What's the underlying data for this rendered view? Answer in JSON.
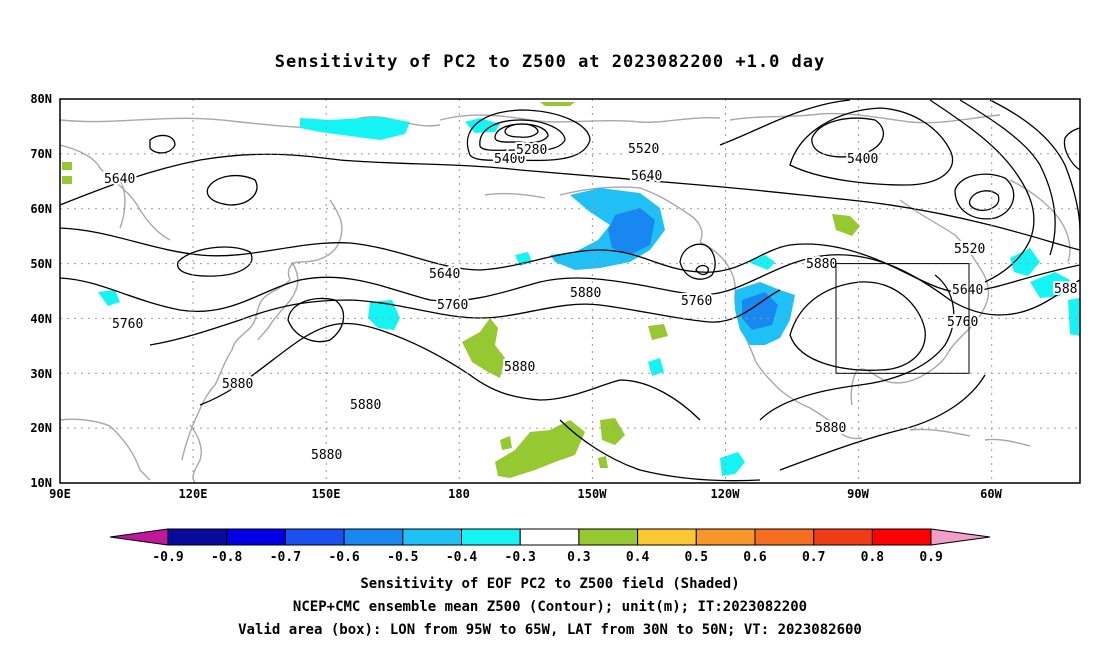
{
  "title": "Sensitivity of PC2 to Z500 at 2023082200 +1.0 day",
  "map": {
    "lat_labels": [
      "80N",
      "70N",
      "60N",
      "50N",
      "40N",
      "30N",
      "20N",
      "10N"
    ],
    "lon_labels": [
      "90E",
      "120E",
      "150E",
      "180",
      "150W",
      "120W",
      "90W",
      "60W"
    ],
    "contour_labels": [
      "5640",
      "5760",
      "5880",
      "5400",
      "5280",
      "5520",
      "5640",
      "5640",
      "5760",
      "5880",
      "5880",
      "5760",
      "5880",
      "5880",
      "5400",
      "5520",
      "5640",
      "5760",
      "5880",
      "5880",
      "5880",
      "588"
    ],
    "valid_box": {
      "lon": [
        "95W",
        "65W"
      ],
      "lat": [
        "30N",
        "50N"
      ]
    }
  },
  "colorbar": {
    "ticks": [
      "-0.9",
      "-0.8",
      "-0.7",
      "-0.6",
      "-0.5",
      "-0.4",
      "-0.3",
      "0.3",
      "0.4",
      "0.5",
      "0.6",
      "0.7",
      "0.8",
      "0.9"
    ],
    "colors": {
      "below": "#c0189a",
      "bins": [
        "#0a0a9a",
        "#0000e6",
        "#1a50f0",
        "#1888f0",
        "#1ec0f6",
        "#14f4f4",
        "#ffffff",
        "#96c832",
        "#fac832",
        "#f89628",
        "#f56e1e",
        "#ef3c14",
        "#ff0000"
      ],
      "above": "#f0a0c8"
    }
  },
  "footer": {
    "line1": "Sensitivity of EOF PC2 to Z500 field (Shaded)",
    "line2": "NCEP+CMC ensemble mean Z500 (Contour); unit(m); IT:2023082200",
    "line3": "Valid area (box): LON from 95W to 65W, LAT from 30N to 50N; VT: 2023082600"
  }
}
